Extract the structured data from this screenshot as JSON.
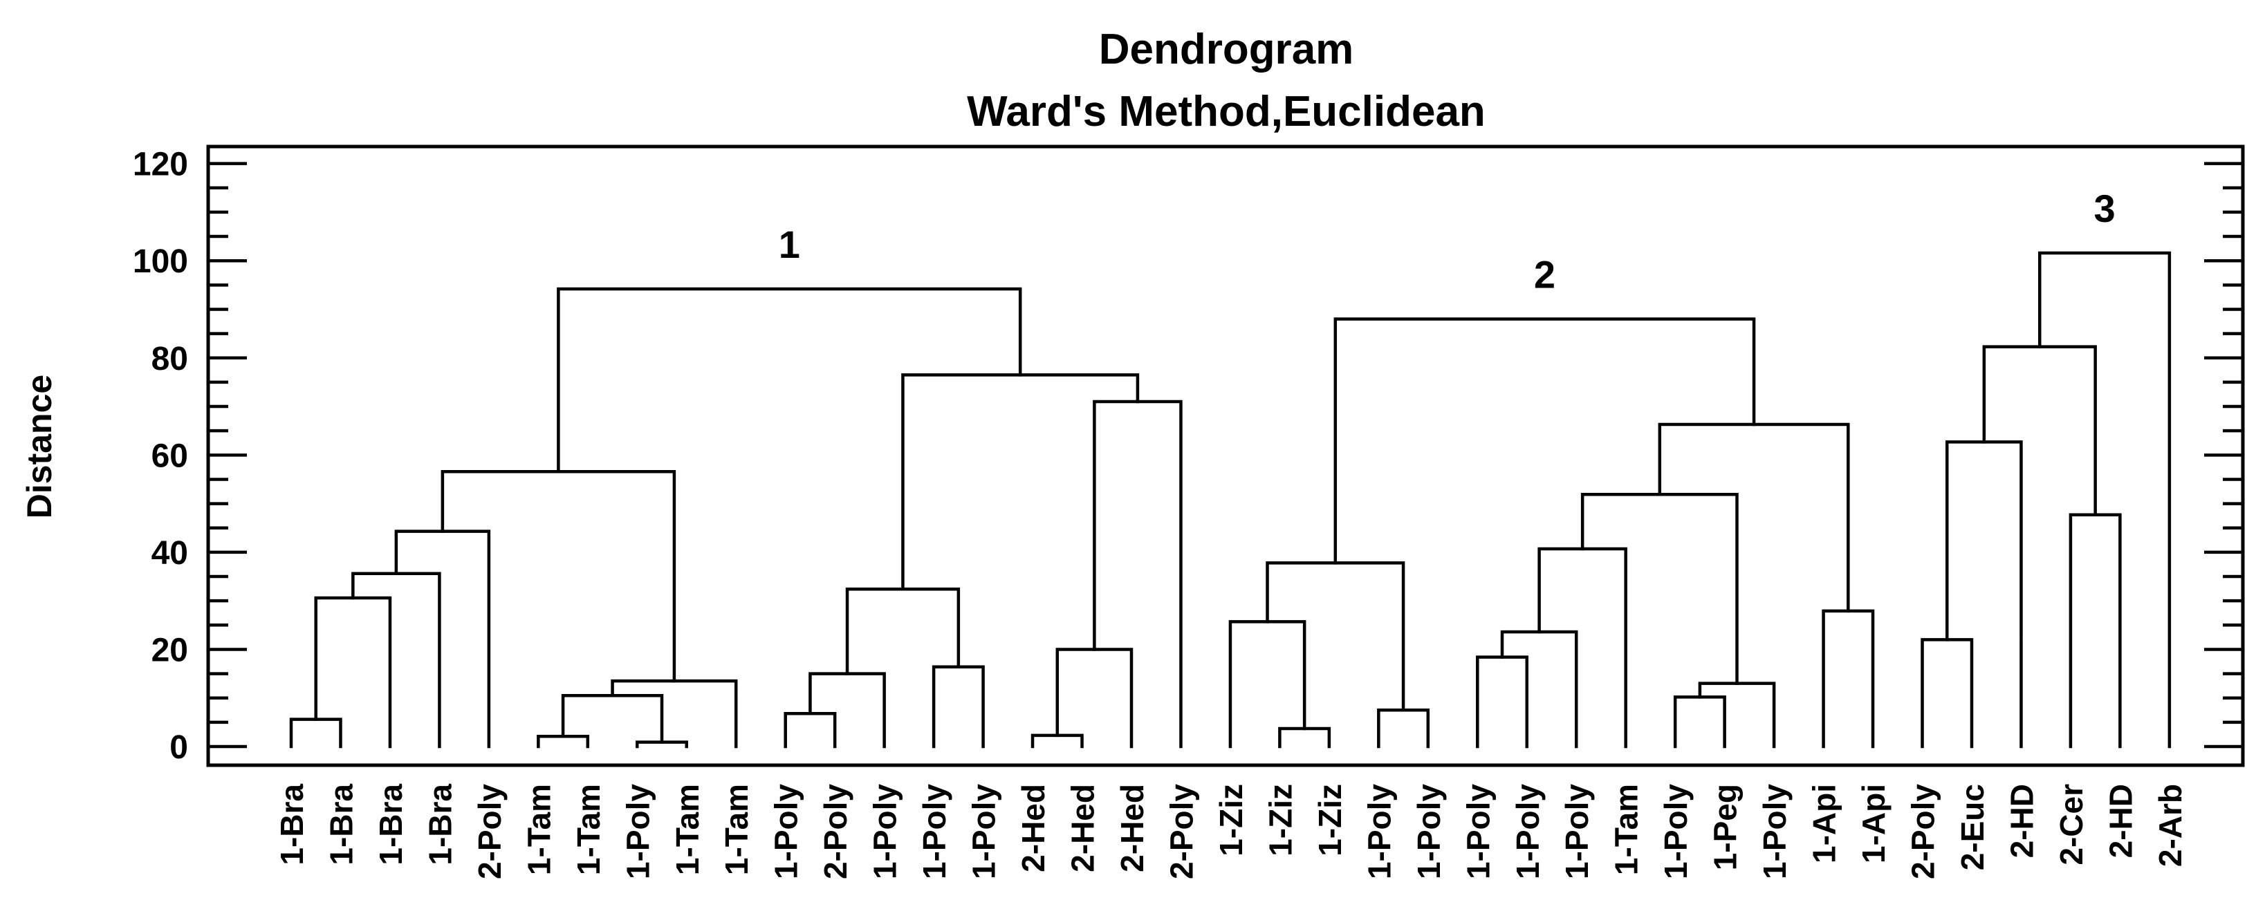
{
  "title": "Dendrogram",
  "subtitle": "Ward's Method,Euclidean",
  "colors": {
    "line": "#000000",
    "text": "#000000",
    "background": "#ffffff"
  },
  "y_axis": {
    "label": "Distance",
    "min": 0,
    "max": 120,
    "major_step": 20,
    "minor_step": 5,
    "major_ticks": [
      0,
      20,
      40,
      60,
      80,
      100,
      120
    ]
  },
  "chart_data": {
    "type": "dendrogram",
    "title": "Dendrogram",
    "subtitle": "Ward's Method,Euclidean",
    "ylabel": "Distance",
    "ylim": [
      0,
      120
    ],
    "leaves": [
      "1-Bra",
      "1-Bra",
      "1-Bra",
      "1-Bra",
      "2-Poly",
      "1-Tam",
      "1-Tam",
      "1-Poly",
      "1-Tam",
      "1-Tam",
      "1-Poly",
      "2-Poly",
      "1-Poly",
      "1-Poly",
      "1-Poly",
      "2-Hed",
      "2-Hed",
      "2-Hed",
      "2-Poly",
      "1-Ziz",
      "1-Ziz",
      "1-Ziz",
      "1-Poly",
      "1-Poly",
      "1-Poly",
      "1-Poly",
      "1-Poly",
      "1-Tam",
      "1-Poly",
      "1-Peg",
      "1-Poly",
      "1-Api",
      "1-Api",
      "2-Poly",
      "2-Euc",
      "2-HD",
      "2-Cer",
      "2-HD",
      "2-Arb"
    ],
    "merges": [
      {
        "a": "L0",
        "b": "L1",
        "h": 5.6
      },
      {
        "a": "M0",
        "b": "L2",
        "h": 30.6
      },
      {
        "a": "M1",
        "b": "L3",
        "h": 35.6
      },
      {
        "a": "M2",
        "b": "L4",
        "h": 44.3
      },
      {
        "a": "L5",
        "b": "L6",
        "h": 2.1
      },
      {
        "a": "L7",
        "b": "L8",
        "h": 0.9
      },
      {
        "a": "M4",
        "b": "M5",
        "h": 10.5
      },
      {
        "a": "M6",
        "b": "L9",
        "h": 13.5
      },
      {
        "a": "M3",
        "b": "M7",
        "h": 56.6
      },
      {
        "a": "L10",
        "b": "L11",
        "h": 6.8
      },
      {
        "a": "M9",
        "b": "L12",
        "h": 15.0
      },
      {
        "a": "L13",
        "b": "L14",
        "h": 16.4
      },
      {
        "a": "M10",
        "b": "M11",
        "h": 32.4
      },
      {
        "a": "L15",
        "b": "L16",
        "h": 2.3
      },
      {
        "a": "M13",
        "b": "L17",
        "h": 20.0
      },
      {
        "a": "M14",
        "b": "L18",
        "h": 71.0
      },
      {
        "a": "M12",
        "b": "M15",
        "h": 76.5
      },
      {
        "a": "M8",
        "b": "M16",
        "h": 94.2
      },
      {
        "a": "L20",
        "b": "L21",
        "h": 3.7
      },
      {
        "a": "L19",
        "b": "M18",
        "h": 25.7
      },
      {
        "a": "L22",
        "b": "L23",
        "h": 7.5
      },
      {
        "a": "M19",
        "b": "M20",
        "h": 37.8
      },
      {
        "a": "L24",
        "b": "L25",
        "h": 18.4
      },
      {
        "a": "M22",
        "b": "L26",
        "h": 23.6
      },
      {
        "a": "M23",
        "b": "L27",
        "h": 40.7
      },
      {
        "a": "L28",
        "b": "L29",
        "h": 10.2
      },
      {
        "a": "M25",
        "b": "L30",
        "h": 13.0
      },
      {
        "a": "M24",
        "b": "M26",
        "h": 51.9
      },
      {
        "a": "L31",
        "b": "L32",
        "h": 27.9
      },
      {
        "a": "M27",
        "b": "M28",
        "h": 66.3
      },
      {
        "a": "M21",
        "b": "M29",
        "h": 88.0
      },
      {
        "a": "L33",
        "b": "L34",
        "h": 22.0
      },
      {
        "a": "M31",
        "b": "L35",
        "h": 62.7
      },
      {
        "a": "L36",
        "b": "L37",
        "h": 47.7
      },
      {
        "a": "M32",
        "b": "M33",
        "h": 82.3
      },
      {
        "a": "M34",
        "b": "L38",
        "h": 101.6
      }
    ],
    "clusters": [
      {
        "label": "1",
        "root": "M17"
      },
      {
        "label": "2",
        "root": "M30"
      },
      {
        "label": "3",
        "root": "M35"
      }
    ],
    "legend": "none",
    "grid": "off"
  }
}
